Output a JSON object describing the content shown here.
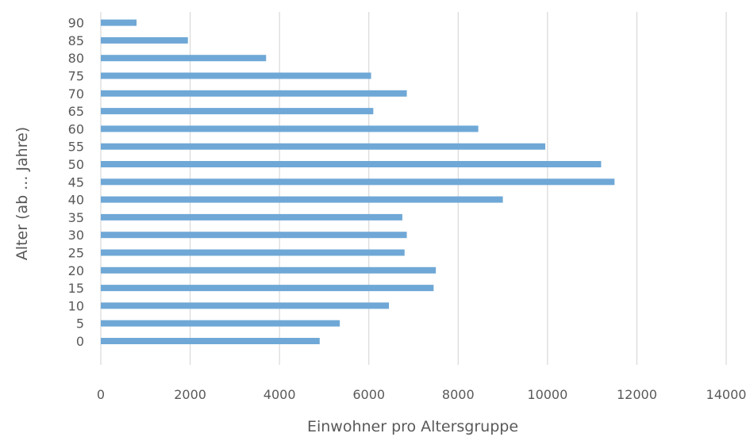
{
  "chart_data": {
    "type": "bar",
    "orientation": "horizontal",
    "categories": [
      "0",
      "5",
      "10",
      "15",
      "20",
      "25",
      "30",
      "35",
      "40",
      "45",
      "50",
      "55",
      "60",
      "65",
      "70",
      "75",
      "80",
      "85",
      "90"
    ],
    "values": [
      4900,
      5350,
      6450,
      7450,
      7500,
      6800,
      6850,
      6750,
      9000,
      11500,
      11200,
      9950,
      8450,
      6100,
      6850,
      6050,
      3700,
      1950,
      800
    ],
    "xlabel": "Einwohner pro Altersgruppe",
    "ylabel": "Alter (ab ... Jahre)",
    "xlim": [
      0,
      14000
    ],
    "xticks": [
      "0",
      "2000",
      "4000",
      "6000",
      "8000",
      "10000",
      "12000",
      "14000"
    ],
    "grid": "vertical",
    "bar_color": "#6fa8d6"
  }
}
